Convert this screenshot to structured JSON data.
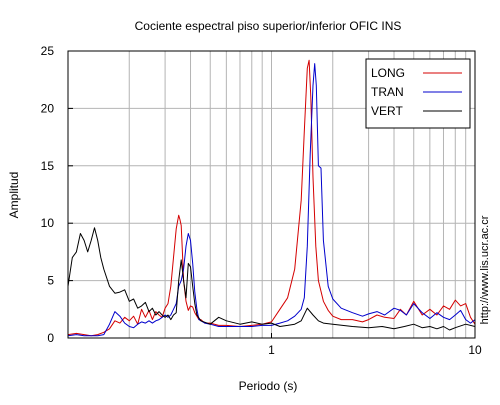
{
  "chart_data": {
    "type": "line",
    "title": "Cociente espectral piso superior/inferior  OFIC INS",
    "xlabel": "Periodo (s)",
    "ylabel": "Amplitud",
    "xscale": "log",
    "xlim": [
      0.1,
      10
    ],
    "ylim": [
      0,
      25
    ],
    "x_ticks": [
      1,
      10
    ],
    "x_tick_labels": [
      "1",
      "10"
    ],
    "y_ticks": [
      0,
      5,
      10,
      15,
      20,
      25
    ],
    "y_tick_labels": [
      "0",
      "5",
      "10",
      "15",
      "20",
      "25"
    ],
    "grid": true,
    "legend_position": "top-right",
    "side_text": "http://www.lis.ucr.ac.cr",
    "series": [
      {
        "name": "LONG",
        "color": "#d40000",
        "x": [
          0.1,
          0.11,
          0.12,
          0.13,
          0.14,
          0.15,
          0.16,
          0.17,
          0.18,
          0.19,
          0.2,
          0.21,
          0.22,
          0.23,
          0.24,
          0.25,
          0.26,
          0.27,
          0.28,
          0.29,
          0.3,
          0.31,
          0.32,
          0.33,
          0.34,
          0.35,
          0.355,
          0.36,
          0.365,
          0.37,
          0.38,
          0.39,
          0.4,
          0.41,
          0.42,
          0.43,
          0.44,
          0.45,
          0.47,
          0.5,
          0.55,
          0.6,
          0.7,
          0.8,
          0.9,
          1.0,
          1.1,
          1.2,
          1.3,
          1.4,
          1.45,
          1.5,
          1.53,
          1.56,
          1.6,
          1.65,
          1.7,
          1.8,
          1.9,
          2.0,
          2.2,
          2.5,
          2.8,
          3.0,
          3.3,
          3.6,
          4.0,
          4.3,
          4.6,
          5.0,
          5.5,
          6.0,
          6.5,
          7.0,
          7.5,
          8.0,
          8.5,
          9.0,
          9.5,
          10.0
        ],
        "y": [
          0.3,
          0.4,
          0.3,
          0.2,
          0.3,
          0.5,
          0.8,
          1.5,
          1.3,
          1.8,
          1.5,
          1.9,
          1.2,
          2.5,
          1.8,
          2.4,
          1.6,
          2.3,
          2.0,
          1.8,
          2.6,
          3.0,
          4.5,
          7.0,
          9.5,
          10.7,
          10.3,
          9.8,
          7.5,
          5.0,
          3.2,
          2.4,
          2.8,
          2.7,
          2.2,
          1.9,
          1.6,
          1.6,
          1.3,
          1.3,
          1.1,
          1.1,
          1.0,
          1.1,
          1.2,
          1.4,
          2.5,
          3.5,
          6.0,
          12.0,
          18.0,
          23.5,
          24.2,
          21.0,
          14.0,
          8.0,
          5.0,
          3.2,
          2.4,
          1.9,
          1.6,
          1.6,
          1.4,
          1.6,
          2.0,
          1.8,
          1.7,
          2.5,
          2.0,
          3.2,
          2.0,
          2.5,
          2.0,
          2.8,
          2.5,
          3.3,
          2.8,
          3.0,
          1.8,
          1.2
        ]
      },
      {
        "name": "TRAN",
        "color": "#0000cc",
        "x": [
          0.1,
          0.11,
          0.12,
          0.13,
          0.14,
          0.15,
          0.16,
          0.17,
          0.18,
          0.19,
          0.2,
          0.21,
          0.22,
          0.23,
          0.24,
          0.25,
          0.26,
          0.27,
          0.28,
          0.29,
          0.3,
          0.31,
          0.32,
          0.33,
          0.34,
          0.35,
          0.36,
          0.37,
          0.38,
          0.39,
          0.4,
          0.41,
          0.42,
          0.43,
          0.44,
          0.45,
          0.47,
          0.5,
          0.55,
          0.6,
          0.7,
          0.8,
          0.9,
          1.0,
          1.1,
          1.2,
          1.3,
          1.4,
          1.45,
          1.5,
          1.55,
          1.6,
          1.63,
          1.66,
          1.7,
          1.75,
          1.8,
          1.9,
          2.0,
          2.2,
          2.5,
          2.8,
          3.0,
          3.3,
          3.6,
          4.0,
          4.3,
          4.6,
          5.0,
          5.5,
          6.0,
          6.5,
          7.0,
          7.5,
          8.0,
          8.5,
          9.0,
          9.5,
          10.0
        ],
        "y": [
          0.2,
          0.3,
          0.2,
          0.2,
          0.2,
          0.3,
          1.2,
          2.3,
          1.9,
          1.3,
          1.0,
          0.9,
          1.2,
          1.4,
          1.3,
          1.5,
          1.3,
          1.5,
          1.6,
          1.8,
          2.0,
          1.8,
          2.0,
          2.5,
          3.0,
          4.5,
          5.0,
          6.0,
          8.0,
          9.1,
          8.5,
          6.5,
          4.0,
          2.5,
          1.6,
          1.5,
          1.3,
          1.2,
          1.0,
          1.0,
          1.0,
          1.0,
          1.1,
          1.1,
          1.3,
          1.5,
          1.9,
          2.5,
          3.5,
          8.0,
          16.0,
          22.0,
          23.9,
          22.0,
          15.0,
          14.8,
          8.5,
          4.5,
          3.4,
          2.6,
          2.2,
          1.9,
          2.1,
          2.3,
          2.0,
          2.6,
          2.4,
          2.0,
          3.0,
          2.2,
          1.7,
          2.2,
          1.8,
          1.6,
          2.0,
          2.4,
          1.6,
          1.3,
          1.6
        ]
      },
      {
        "name": "VERT",
        "color": "#000000",
        "x": [
          0.1,
          0.105,
          0.11,
          0.115,
          0.12,
          0.125,
          0.13,
          0.135,
          0.14,
          0.145,
          0.15,
          0.16,
          0.17,
          0.18,
          0.19,
          0.2,
          0.21,
          0.22,
          0.23,
          0.24,
          0.25,
          0.26,
          0.27,
          0.28,
          0.29,
          0.3,
          0.31,
          0.32,
          0.33,
          0.34,
          0.35,
          0.36,
          0.37,
          0.38,
          0.39,
          0.4,
          0.41,
          0.42,
          0.43,
          0.45,
          0.5,
          0.55,
          0.6,
          0.7,
          0.8,
          0.9,
          1.0,
          1.1,
          1.2,
          1.3,
          1.4,
          1.5,
          1.6,
          1.7,
          1.8,
          2.0,
          2.5,
          3.0,
          3.5,
          4.0,
          4.5,
          5.0,
          5.5,
          6.0,
          6.5,
          7.0,
          7.5,
          8.0,
          9.0,
          10.0
        ],
        "y": [
          4.5,
          7.0,
          7.5,
          9.1,
          8.5,
          7.5,
          8.5,
          9.6,
          8.5,
          7.0,
          6.0,
          4.5,
          3.9,
          4.0,
          4.2,
          3.2,
          3.4,
          2.6,
          2.8,
          3.1,
          2.3,
          2.6,
          2.0,
          2.3,
          2.0,
          1.8,
          2.0,
          1.6,
          2.0,
          2.2,
          5.0,
          6.8,
          5.0,
          3.5,
          6.5,
          6.2,
          4.5,
          3.0,
          2.0,
          1.5,
          1.2,
          1.8,
          1.5,
          1.2,
          1.4,
          1.2,
          1.3,
          1.0,
          1.1,
          1.2,
          1.5,
          2.6,
          2.0,
          1.5,
          1.3,
          1.2,
          1.0,
          0.9,
          1.0,
          0.8,
          1.0,
          1.2,
          0.9,
          1.0,
          0.8,
          1.0,
          0.7,
          0.9,
          1.2,
          1.0
        ]
      }
    ]
  }
}
